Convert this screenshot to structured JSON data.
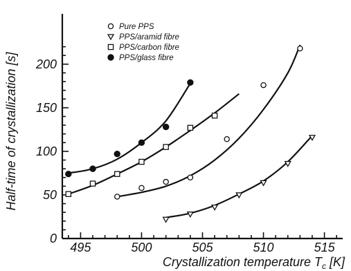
{
  "chart_data": {
    "type": "scatter",
    "title": "",
    "xlabel": "Crystallization temperature T",
    "xlabel_sub": "c",
    "xlabel_unit": "[K]",
    "ylabel": "Half-time of crystallization [s]",
    "xlim": [
      493.5,
      516.5
    ],
    "ylim": [
      0,
      230
    ],
    "xticks": [
      495,
      500,
      505,
      510,
      515
    ],
    "yticks": [
      0,
      50,
      100,
      150,
      200
    ],
    "grid": false,
    "legend_position": "top-left",
    "series": [
      {
        "name": "Pure PPS",
        "marker": "open-circle",
        "x": [
          498,
          500,
          502,
          504,
          507,
          510,
          513
        ],
        "y": [
          48,
          58,
          65,
          70,
          114,
          176,
          218
        ],
        "fit": [
          [
            498,
            48
          ],
          [
            500,
            53
          ],
          [
            502,
            60
          ],
          [
            504,
            72
          ],
          [
            506,
            90
          ],
          [
            508,
            115
          ],
          [
            510,
            148
          ],
          [
            512,
            190
          ],
          [
            513,
            222
          ]
        ]
      },
      {
        "name": "PPS/aramid fibre",
        "marker": "open-triangle-down",
        "x": [
          502,
          504,
          506,
          508,
          510,
          512,
          514
        ],
        "y": [
          22,
          28,
          36,
          50,
          64,
          86,
          116
        ],
        "fit": [
          [
            502,
            24
          ],
          [
            504,
            29
          ],
          [
            506,
            38
          ],
          [
            508,
            51
          ],
          [
            510,
            66
          ],
          [
            512,
            88
          ],
          [
            514,
            118
          ]
        ]
      },
      {
        "name": "PPS/carbon fibre",
        "marker": "open-square",
        "x": [
          494,
          496,
          498,
          500,
          502,
          504,
          506
        ],
        "y": [
          51,
          63,
          74,
          88,
          105,
          127,
          141
        ],
        "fit": [
          [
            494,
            51
          ],
          [
            496,
            61
          ],
          [
            498,
            74
          ],
          [
            500,
            88
          ],
          [
            502,
            105
          ],
          [
            504,
            124
          ],
          [
            506,
            144
          ],
          [
            508,
            166
          ]
        ]
      },
      {
        "name": "PPS/glass fibre",
        "marker": "filled-circle",
        "x": [
          494,
          496,
          498,
          500,
          502,
          504
        ],
        "y": [
          74,
          80,
          97,
          110,
          128,
          179
        ],
        "fit": [
          [
            494,
            75
          ],
          [
            496,
            80
          ],
          [
            498,
            91
          ],
          [
            500,
            110
          ],
          [
            502,
            135
          ],
          [
            504,
            178
          ]
        ]
      }
    ]
  }
}
